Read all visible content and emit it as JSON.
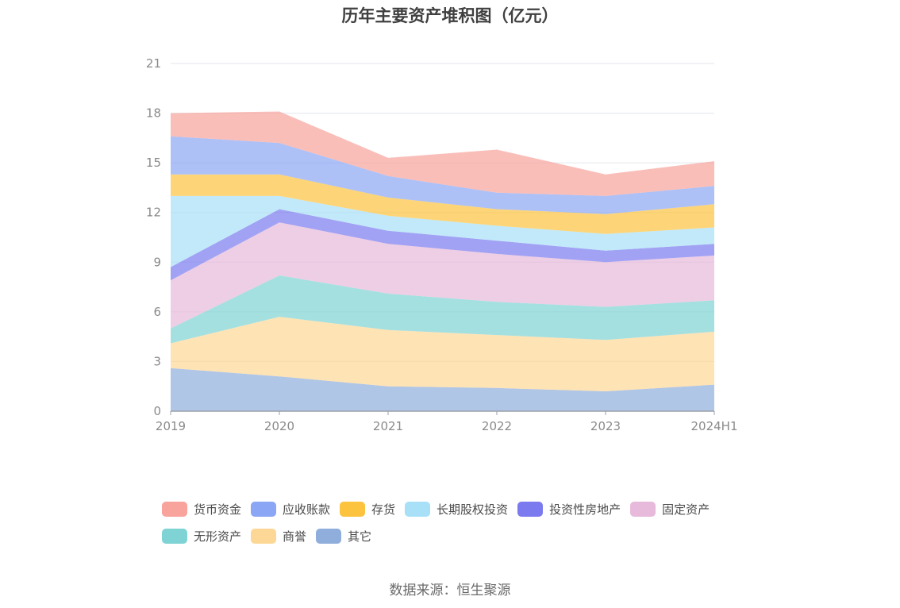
{
  "chart_data": {
    "type": "area",
    "title": "历年主要资产堆积图（亿元）",
    "xlabel": "",
    "ylabel": "",
    "categories": [
      "2019",
      "2020",
      "2021",
      "2022",
      "2023",
      "2024H1"
    ],
    "ylim": [
      0,
      21
    ],
    "yticks": [
      0,
      3,
      6,
      9,
      12,
      15,
      18,
      21
    ],
    "grid": true,
    "legend_position": "bottom",
    "stacked": true,
    "series": [
      {
        "name": "其它",
        "color": "#8faedb",
        "values": [
          2.6,
          2.1,
          1.5,
          1.4,
          1.2,
          1.6
        ]
      },
      {
        "name": "商誉",
        "color": "#fdd795",
        "values": [
          1.5,
          3.6,
          3.4,
          3.2,
          3.1,
          3.2
        ]
      },
      {
        "name": "无形资产",
        "color": "#7fd3d4",
        "values": [
          0.9,
          2.5,
          2.2,
          2.0,
          2.0,
          1.9
        ]
      },
      {
        "name": "固定资产",
        "color": "#e7b9da",
        "values": [
          2.9,
          3.2,
          3.0,
          2.9,
          2.7,
          2.7
        ]
      },
      {
        "name": "投资性房地产",
        "color": "#7b7bef",
        "values": [
          0.8,
          0.8,
          0.8,
          0.8,
          0.7,
          0.7
        ]
      },
      {
        "name": "长期股权投资",
        "color": "#a8e0f8",
        "values": [
          4.3,
          0.8,
          0.9,
          0.9,
          1.0,
          1.0
        ]
      },
      {
        "name": "存货",
        "color": "#fcc33e",
        "values": [
          1.3,
          1.3,
          1.1,
          1.0,
          1.2,
          1.4
        ]
      },
      {
        "name": "应收账款",
        "color": "#8aa6f4",
        "values": [
          2.3,
          1.9,
          1.3,
          1.0,
          1.1,
          1.1
        ]
      },
      {
        "name": "货币资金",
        "color": "#f8a39b",
        "values": [
          1.4,
          1.9,
          1.1,
          2.6,
          1.3,
          1.5
        ]
      }
    ]
  },
  "legend_order": [
    "货币资金",
    "应收账款",
    "存货",
    "长期股权投资",
    "投资性房地产",
    "固定资产",
    "无形资产",
    "商誉",
    "其它"
  ],
  "source": "数据来源：恒生聚源"
}
